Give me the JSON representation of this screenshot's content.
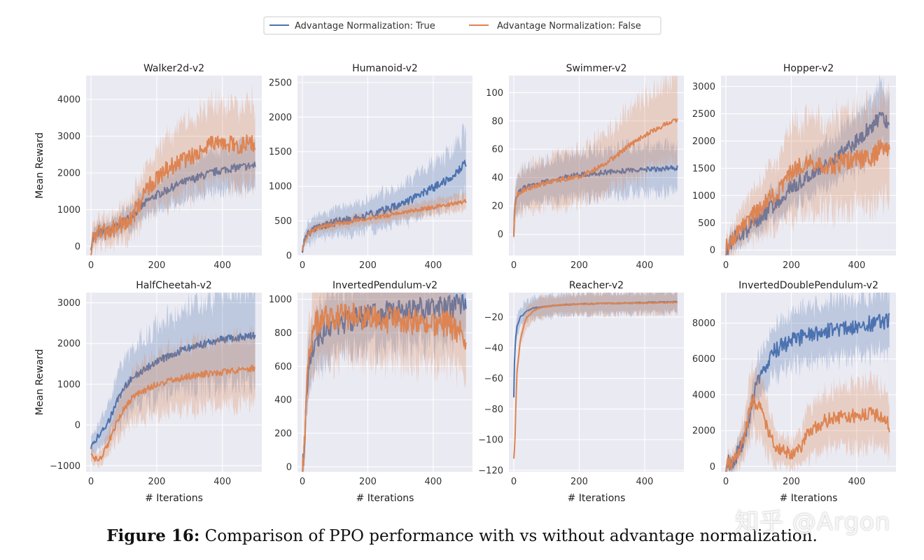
{
  "legend": {
    "items": [
      {
        "label": "Advantage Normalization: True",
        "color": "#4c72b0"
      },
      {
        "label": "Advantage Normalization: False",
        "color": "#dd8452"
      }
    ]
  },
  "caption": {
    "label": "Figure 16:",
    "text": "Comparison of PPO performance with vs without advantage normalization."
  },
  "watermark": "知乎 @Argon",
  "chart_data": [
    {
      "type": "line",
      "title": "Walker2d-v2",
      "ylabel": "Mean Reward",
      "xlabel": "",
      "xlim": [
        -15,
        520
      ],
      "ylim": [
        -250,
        4650
      ],
      "xticks": [
        0,
        200,
        400
      ],
      "yticks": [
        0,
        1000,
        2000,
        3000,
        4000
      ],
      "series": [
        {
          "name": "Advantage Normalization: True",
          "x": [
            0,
            10,
            25,
            50,
            75,
            100,
            125,
            150,
            175,
            200,
            225,
            250,
            275,
            300,
            325,
            350,
            375,
            400,
            425,
            450,
            475,
            500
          ],
          "y": [
            0,
            280,
            380,
            420,
            520,
            700,
            820,
            1050,
            1250,
            1400,
            1500,
            1620,
            1720,
            1800,
            1880,
            1950,
            2020,
            2080,
            2120,
            2150,
            2180,
            2200
          ],
          "noise": 110,
          "band": 0.22
        },
        {
          "name": "Advantage Normalization: False",
          "x": [
            0,
            10,
            25,
            50,
            75,
            100,
            125,
            150,
            175,
            200,
            225,
            250,
            275,
            300,
            325,
            350,
            375,
            400,
            425,
            450,
            475,
            500
          ],
          "y": [
            0,
            280,
            380,
            420,
            500,
            650,
            800,
            1200,
            1600,
            1900,
            2050,
            2200,
            2350,
            2400,
            2500,
            2750,
            2800,
            2800,
            2800,
            2750,
            2800,
            2750
          ],
          "noise": 240,
          "band": 0.3
        }
      ]
    },
    {
      "type": "line",
      "title": "Humanoid-v2",
      "ylabel": "",
      "xlabel": "",
      "xlim": [
        -15,
        520
      ],
      "ylim": [
        0,
        2600
      ],
      "xticks": [
        0,
        200,
        400
      ],
      "yticks": [
        0,
        500,
        1000,
        1500,
        2000,
        2500
      ],
      "series": [
        {
          "name": "Advantage Normalization: True",
          "x": [
            0,
            5,
            15,
            30,
            50,
            75,
            100,
            150,
            200,
            250,
            300,
            350,
            400,
            430,
            460,
            480,
            500
          ],
          "y": [
            100,
            180,
            300,
            380,
            420,
            450,
            480,
            520,
            580,
            650,
            730,
            850,
            980,
            1050,
            1150,
            1250,
            1330
          ],
          "noise": 60,
          "band": 0.3
        },
        {
          "name": "Advantage Normalization: False",
          "x": [
            0,
            5,
            15,
            30,
            50,
            75,
            100,
            150,
            200,
            250,
            300,
            350,
            400,
            450,
            500
          ],
          "y": [
            100,
            170,
            290,
            360,
            400,
            430,
            450,
            490,
            530,
            570,
            610,
            660,
            700,
            740,
            780
          ],
          "noise": 30,
          "band": 0.12
        }
      ]
    },
    {
      "type": "line",
      "title": "Swimmer-v2",
      "ylabel": "",
      "xlabel": "",
      "xlim": [
        -15,
        520
      ],
      "ylim": [
        -15,
        112
      ],
      "xticks": [
        0,
        200,
        400
      ],
      "yticks": [
        0,
        20,
        40,
        60,
        80,
        100
      ],
      "series": [
        {
          "name": "Advantage Normalization: True",
          "x": [
            0,
            3,
            10,
            25,
            50,
            100,
            150,
            200,
            250,
            300,
            350,
            400,
            450,
            500
          ],
          "y": [
            0,
            22,
            28,
            32,
            34,
            37,
            40,
            42,
            43,
            44,
            45,
            46,
            46,
            47
          ],
          "noise": 1.8,
          "band": 0.25
        },
        {
          "name": "Advantage Normalization: False",
          "x": [
            0,
            3,
            10,
            25,
            50,
            100,
            150,
            200,
            250,
            300,
            350,
            400,
            450,
            480,
            500
          ],
          "y": [
            0,
            20,
            28,
            31,
            33,
            36,
            39,
            41,
            46,
            53,
            62,
            70,
            76,
            79,
            80
          ],
          "noise": 1.8,
          "band": 0.3
        }
      ]
    },
    {
      "type": "line",
      "title": "Hopper-v2",
      "ylabel": "",
      "xlabel": "",
      "xlim": [
        -15,
        520
      ],
      "ylim": [
        -100,
        3200
      ],
      "xticks": [
        0,
        200,
        400
      ],
      "yticks": [
        0,
        500,
        1000,
        1500,
        2000,
        2500,
        3000
      ],
      "series": [
        {
          "name": "Advantage Normalization: True",
          "x": [
            0,
            20,
            50,
            100,
            150,
            200,
            250,
            300,
            350,
            400,
            450,
            475,
            500
          ],
          "y": [
            0,
            200,
            300,
            550,
            850,
            1150,
            1350,
            1550,
            1750,
            2000,
            2300,
            2450,
            2250
          ],
          "noise": 140,
          "band": 0.18
        },
        {
          "name": "Advantage Normalization: False",
          "x": [
            0,
            20,
            50,
            100,
            150,
            200,
            250,
            300,
            350,
            400,
            450,
            475,
            500
          ],
          "y": [
            0,
            200,
            400,
            750,
            1000,
            1450,
            1650,
            1500,
            1600,
            1650,
            1700,
            1900,
            1750
          ],
          "noise": 180,
          "band": 0.4
        }
      ]
    },
    {
      "type": "line",
      "title": "HalfCheetah-v2",
      "ylabel": "Mean Reward",
      "xlabel": "# Iterations",
      "xlim": [
        -15,
        520
      ],
      "ylim": [
        -1150,
        3250
      ],
      "xticks": [
        0,
        200,
        400
      ],
      "yticks": [
        -1000,
        0,
        1000,
        2000,
        3000
      ],
      "series": [
        {
          "name": "Advantage Normalization: True",
          "x": [
            0,
            10,
            25,
            50,
            75,
            100,
            125,
            150,
            200,
            250,
            300,
            350,
            400,
            450,
            500
          ],
          "y": [
            -500,
            -400,
            -250,
            0,
            500,
            900,
            1150,
            1300,
            1550,
            1750,
            1900,
            2000,
            2100,
            2150,
            2200
          ],
          "noise": 90,
          "band": 0.3
        },
        {
          "name": "Advantage Normalization: False",
          "x": [
            0,
            10,
            20,
            30,
            50,
            75,
            100,
            125,
            150,
            200,
            250,
            300,
            350,
            400,
            450,
            500
          ],
          "y": [
            -650,
            -800,
            -850,
            -800,
            -500,
            0,
            400,
            650,
            800,
            1000,
            1100,
            1200,
            1250,
            1300,
            1350,
            1400
          ],
          "noise": 80,
          "band": 0.3
        }
      ]
    },
    {
      "type": "line",
      "title": "InvertedPendulum-v2",
      "ylabel": "",
      "xlabel": "# Iterations",
      "xlim": [
        -15,
        520
      ],
      "ylim": [
        -30,
        1040
      ],
      "xticks": [
        0,
        200,
        400
      ],
      "yticks": [
        0,
        200,
        400,
        600,
        800,
        1000
      ],
      "series": [
        {
          "name": "Advantage Normalization: True",
          "x": [
            0,
            5,
            10,
            15,
            20,
            30,
            40,
            60,
            80,
            100,
            150,
            200,
            250,
            300,
            350,
            400,
            450,
            500
          ],
          "y": [
            0,
            100,
            300,
            500,
            600,
            700,
            750,
            800,
            820,
            850,
            880,
            900,
            920,
            930,
            940,
            950,
            960,
            960
          ],
          "noise": 70,
          "band": 0.15
        },
        {
          "name": "Advantage Normalization: False",
          "x": [
            0,
            5,
            10,
            15,
            20,
            30,
            40,
            60,
            80,
            100,
            150,
            200,
            250,
            300,
            350,
            400,
            450,
            480,
            500
          ],
          "y": [
            0,
            100,
            300,
            500,
            650,
            780,
            850,
            880,
            900,
            900,
            900,
            880,
            880,
            870,
            860,
            860,
            850,
            800,
            760
          ],
          "noise": 80,
          "band": 0.2
        }
      ]
    },
    {
      "type": "line",
      "title": "Reacher-v2",
      "ylabel": "",
      "xlabel": "# Iterations",
      "xlim": [
        -15,
        520
      ],
      "ylim": [
        -121,
        -4
      ],
      "xticks": [
        0,
        200,
        400
      ],
      "yticks": [
        -120,
        -100,
        -80,
        -60,
        -40,
        -20
      ],
      "series": [
        {
          "name": "Advantage Normalization: True",
          "x": [
            0,
            2,
            5,
            10,
            20,
            40,
            60,
            100,
            150,
            200,
            300,
            400,
            500
          ],
          "y": [
            -72,
            -50,
            -35,
            -26,
            -20,
            -16,
            -14,
            -13,
            -12,
            -11.5,
            -11,
            -10.5,
            -10
          ],
          "noise": 0.4,
          "band": 0.06
        },
        {
          "name": "Advantage Normalization: False",
          "x": [
            0,
            3,
            6,
            10,
            20,
            30,
            40,
            60,
            80,
            100,
            150,
            200,
            300,
            400,
            500
          ],
          "y": [
            -112,
            -105,
            -80,
            -55,
            -35,
            -26,
            -20,
            -16,
            -14,
            -13,
            -12,
            -11.5,
            -11,
            -10.8,
            -10.5
          ],
          "noise": 0.4,
          "band": 0.06
        }
      ]
    },
    {
      "type": "line",
      "title": "InvertedDoublePendulum-v2",
      "ylabel": "",
      "xlabel": "# Iterations",
      "xlim": [
        -15,
        520
      ],
      "ylim": [
        -300,
        9700
      ],
      "xticks": [
        0,
        200,
        400
      ],
      "yticks": [
        0,
        2000,
        4000,
        6000,
        8000
      ],
      "series": [
        {
          "name": "Advantage Normalization: True",
          "x": [
            0,
            20,
            40,
            60,
            80,
            100,
            150,
            200,
            250,
            300,
            350,
            400,
            450,
            500
          ],
          "y": [
            100,
            300,
            800,
            1800,
            3500,
            5000,
            6500,
            7000,
            7300,
            7500,
            7700,
            7800,
            8000,
            8100
          ],
          "noise": 450,
          "band": 0.15
        },
        {
          "name": "Advantage Normalization: False",
          "x": [
            0,
            20,
            40,
            60,
            80,
            100,
            120,
            150,
            170,
            200,
            230,
            250,
            300,
            350,
            400,
            450,
            500
          ],
          "y": [
            100,
            300,
            800,
            2000,
            3700,
            3500,
            2500,
            1200,
            900,
            800,
            1000,
            2000,
            2500,
            2800,
            2800,
            3000,
            2300
          ],
          "noise": 400,
          "band": 0.45
        }
      ]
    }
  ]
}
